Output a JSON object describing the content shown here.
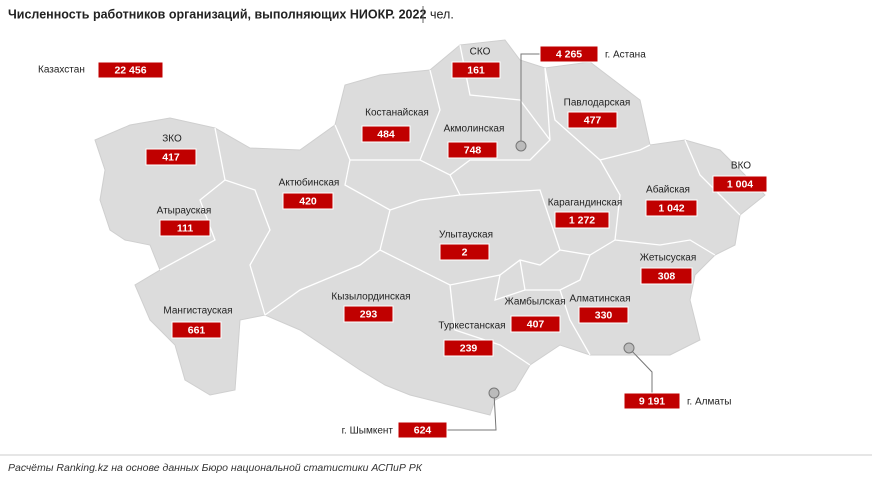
{
  "header": {
    "title": "Численность работников организаций, выполняющих НИОКР. 2022",
    "unit": "чел."
  },
  "total": {
    "label": "Казахстан",
    "value": "22 456"
  },
  "regions": [
    {
      "name": "СКО",
      "value": "161"
    },
    {
      "name": "Павлодарская",
      "value": "477"
    },
    {
      "name": "Костанайская",
      "value": "484"
    },
    {
      "name": "Акмолинская",
      "value": "748"
    },
    {
      "name": "ЗКО",
      "value": "417"
    },
    {
      "name": "Актюбинская",
      "value": "420"
    },
    {
      "name": "ВКО",
      "value": "1 004"
    },
    {
      "name": "Абайская",
      "value": "1 042"
    },
    {
      "name": "Карагандинская",
      "value": "1 272"
    },
    {
      "name": "Атырауская",
      "value": "111"
    },
    {
      "name": "Улытауская",
      "value": "2"
    },
    {
      "name": "Жетысуская",
      "value": "308"
    },
    {
      "name": "Мангистауская",
      "value": "661"
    },
    {
      "name": "Кызылординская",
      "value": "293"
    },
    {
      "name": "Алматинская",
      "value": "330"
    },
    {
      "name": "Жамбылская",
      "value": "407"
    },
    {
      "name": "Туркестанская",
      "value": "239"
    }
  ],
  "cities": [
    {
      "name": "г. Астана",
      "value": "4 265"
    },
    {
      "name": "г. Алматы",
      "value": "9 191"
    },
    {
      "name": "г. Шымкент",
      "value": "624"
    }
  ],
  "source": "Расчёты Ranking.kz на основе данных Бюро национальной статистики АСПиР РК"
}
